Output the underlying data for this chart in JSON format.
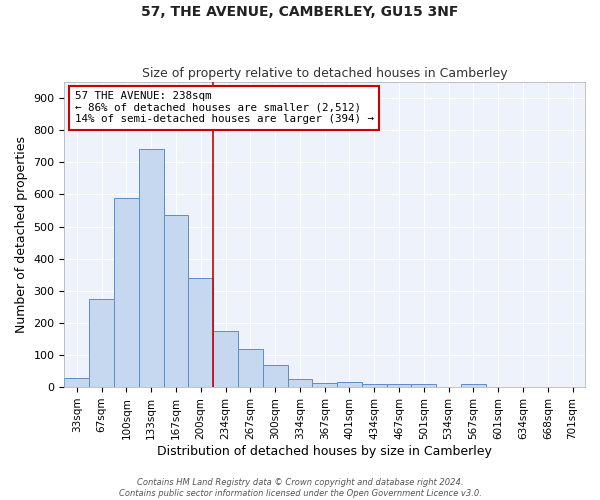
{
  "title": "57, THE AVENUE, CAMBERLEY, GU15 3NF",
  "subtitle": "Size of property relative to detached houses in Camberley",
  "xlabel": "Distribution of detached houses by size in Camberley",
  "ylabel": "Number of detached properties",
  "bar_labels": [
    "33sqm",
    "67sqm",
    "100sqm",
    "133sqm",
    "167sqm",
    "200sqm",
    "234sqm",
    "267sqm",
    "300sqm",
    "334sqm",
    "367sqm",
    "401sqm",
    "434sqm",
    "467sqm",
    "501sqm",
    "534sqm",
    "567sqm",
    "601sqm",
    "634sqm",
    "668sqm",
    "701sqm"
  ],
  "bar_values": [
    27,
    275,
    590,
    740,
    535,
    340,
    175,
    120,
    68,
    25,
    13,
    17,
    11,
    10,
    10,
    0,
    9,
    0,
    0,
    0,
    0
  ],
  "bar_color": "#c5d8f0",
  "bar_edge_color": "#5b8dc8",
  "annotation_line1": "57 THE AVENUE: 238sqm",
  "annotation_line2": "← 86% of detached houses are smaller (2,512)",
  "annotation_line3": "14% of semi-detached houses are larger (394) →",
  "vline_color": "#cc0000",
  "box_edge_color": "#cc0000",
  "ylim": [
    0,
    950
  ],
  "yticks": [
    0,
    100,
    200,
    300,
    400,
    500,
    600,
    700,
    800,
    900
  ],
  "background_color": "#eef2fb",
  "grid_color": "#ffffff",
  "title_fontsize": 10,
  "subtitle_fontsize": 9,
  "ylabel_fontsize": 9,
  "xlabel_fontsize": 9,
  "footer1": "Contains HM Land Registry data © Crown copyright and database right 2024.",
  "footer2": "Contains public sector information licensed under the Open Government Licence v3.0."
}
